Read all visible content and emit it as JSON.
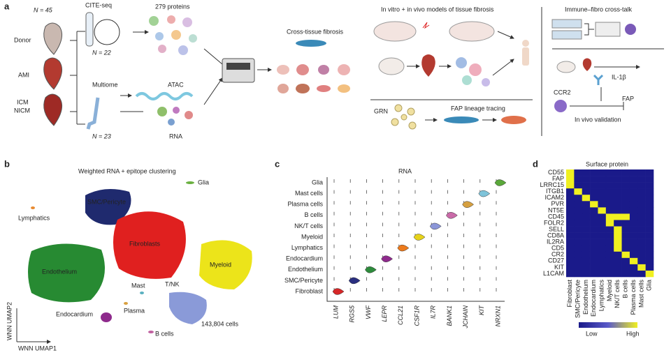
{
  "panel_a": {
    "label": "a",
    "donor_n": "N = 45",
    "groups": [
      "Donor",
      "AMI",
      "ICM",
      "NICM"
    ],
    "cite_seq": "CITE-seq",
    "cite_n": "N = 22",
    "proteins": "279 proteins",
    "multiome": "Multiome",
    "multiome_n": "N = 23",
    "atac": "ATAC",
    "rna": "RNA",
    "cross_tissue": "Cross-tissue fibrosis",
    "models": "In vitro + in vivo models of tissue fibrosis",
    "grn": "GRN",
    "fap_tracing": "FAP lineage tracing",
    "crosstalk": "Immune–fibro cross-talk",
    "il1b": "IL-1β",
    "ccr2": "CCR2",
    "fap": "FAP",
    "validation": "In vivo validation"
  },
  "panel_b": {
    "label": "b",
    "title": "Weighted RNA + epitope clustering",
    "clusters": [
      "Glia",
      "SMC/Pericyte",
      "Lymphatics",
      "Fibroblasts",
      "Endothelium",
      "Myeloid",
      "Mast",
      "T/NK",
      "Plasma",
      "Endocardium",
      "B cells"
    ],
    "cells": "143,804 cells",
    "y_axis": "WNN UMAP2",
    "x_axis": "WNN UMAP1"
  },
  "panel_c": {
    "label": "c",
    "title": "RNA",
    "cell_types": [
      "Glia",
      "Mast cells",
      "Plasma cells",
      "B cells",
      "NK/T cells",
      "Myeloid",
      "Lymphatics",
      "Endocardium",
      "Endothelium",
      "SMC/Pericyte",
      "Fibroblast"
    ],
    "genes": [
      "LUM",
      "RGS5",
      "VWF",
      "LEPR",
      "CCL21",
      "CSF1R",
      "IL7R",
      "BANK1",
      "JCHAIN",
      "KIT",
      "NRXN1"
    ]
  },
  "panel_d": {
    "label": "d",
    "title": "Surface protein",
    "proteins": [
      "CD55",
      "FAP",
      "LRRC15",
      "ITGB1",
      "ICAM2",
      "PVR",
      "NT5E",
      "CD45",
      "FOLR2",
      "SELL",
      "CD8A",
      "IL2RA",
      "CD5",
      "CR2",
      "CD27",
      "KIT",
      "L1CAM"
    ],
    "cell_types": [
      "Fibroblast",
      "SMC/Pericyte",
      "Endothelium",
      "Endocardium",
      "Lymphatics",
      "Myeloid",
      "NK/T cells",
      "B cells",
      "Plasma cells",
      "Mast cells",
      "Glia"
    ],
    "values": [
      [
        1,
        0,
        0,
        0,
        0,
        0,
        0,
        0,
        0,
        0,
        0
      ],
      [
        1,
        0,
        0,
        0,
        0,
        0,
        0,
        0,
        0,
        0,
        0
      ],
      [
        1,
        0,
        0,
        0,
        0,
        0,
        0,
        0,
        0,
        0,
        0
      ],
      [
        0,
        1,
        0,
        0,
        0,
        0,
        0,
        0,
        0,
        0,
        0
      ],
      [
        0,
        0,
        1,
        0,
        0,
        0,
        0,
        0,
        0,
        0,
        0
      ],
      [
        0,
        0,
        0,
        1,
        0,
        0,
        0,
        0,
        0,
        0,
        0
      ],
      [
        0,
        0,
        0,
        0,
        1,
        0,
        0,
        0,
        0,
        0,
        0
      ],
      [
        0,
        0,
        0,
        0,
        0,
        1,
        1,
        1,
        0,
        0,
        0
      ],
      [
        0,
        0,
        0,
        0,
        0,
        1,
        0,
        0,
        0,
        0,
        0
      ],
      [
        0,
        0,
        0,
        0,
        0,
        0,
        1,
        0,
        0,
        0,
        0
      ],
      [
        0,
        0,
        0,
        0,
        0,
        0,
        1,
        0,
        0,
        0,
        0
      ],
      [
        0,
        0,
        0,
        0,
        0,
        0,
        1,
        0,
        0,
        0,
        0
      ],
      [
        0,
        0,
        0,
        0,
        0,
        0,
        1,
        0,
        0,
        0,
        0
      ],
      [
        0,
        0,
        0,
        0,
        0,
        0,
        0,
        1,
        0,
        0,
        0
      ],
      [
        0,
        0,
        0,
        0,
        0,
        0,
        0,
        0,
        1,
        0,
        0
      ],
      [
        0,
        0,
        0,
        0,
        0,
        0,
        0,
        0,
        0,
        1,
        0
      ],
      [
        0,
        0,
        0,
        0,
        0,
        0,
        0,
        0,
        0,
        0,
        1
      ]
    ],
    "legend_low": "Low",
    "legend_high": "High"
  }
}
